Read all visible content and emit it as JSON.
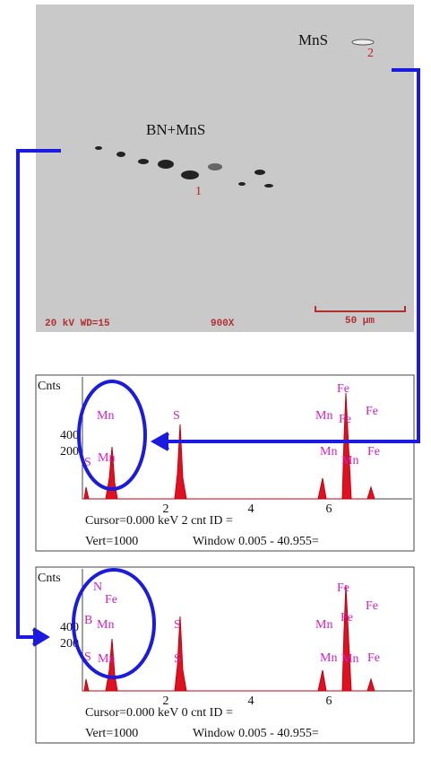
{
  "sem": {
    "label_top": "MnS",
    "marker_top": "2",
    "label_middle": "BN+MnS",
    "marker_middle": "1",
    "voltage": "20 kV WD=15",
    "magnification": "900X",
    "scale": "50 µm"
  },
  "spectra": [
    {
      "y_label": "Cnts",
      "yticks": [
        "400",
        "200"
      ],
      "xticks": [
        "2",
        "4",
        "6"
      ],
      "peaks": [
        "Mn",
        "S",
        "Mn",
        "Fe",
        "Fe",
        "Fe",
        "S",
        "Mn",
        "Mn",
        "Fe",
        "Mn"
      ],
      "cursor": "Cursor=0.000 keV  2 cnt  ID =",
      "vert": "Vert=1000",
      "window": "Window 0.005 - 40.955="
    },
    {
      "y_label": "Cnts",
      "yticks": [
        "400",
        "200"
      ],
      "xticks": [
        "2",
        "4",
        "6"
      ],
      "peaks": [
        "N",
        "Fe",
        "B",
        "Mn",
        "S",
        "Mn",
        "Fe",
        "Fe",
        "Fe",
        "S",
        "Mn",
        "S",
        "Mn",
        "Fe",
        "Mn"
      ],
      "cursor": "Cursor=0.000 keV  0 cnt  ID =",
      "vert": "Vert=1000",
      "window": "Window 0.005 - 40.955="
    }
  ]
}
